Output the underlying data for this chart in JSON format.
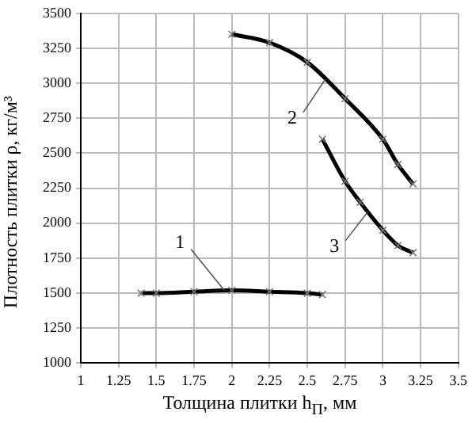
{
  "chart_data": {
    "type": "line",
    "xlabel": "Толщина плитки h$_{П}$, мм",
    "ylabel": "Плотность плитки ρ, кг/м³",
    "xlim": [
      1,
      3.5
    ],
    "xticks": [
      1,
      1.25,
      1.5,
      1.75,
      2,
      2.25,
      2.5,
      2.75,
      3,
      3.25,
      3.5
    ],
    "ylim": [
      1000,
      3500
    ],
    "yticks": [
      1000,
      1250,
      1500,
      1750,
      2000,
      2250,
      2500,
      2750,
      3000,
      3250,
      3500
    ],
    "grid": true,
    "legend": false,
    "marker": "cross",
    "line_style": "solid",
    "series": [
      {
        "color": "#000000",
        "x": [
          1.4,
          1.5,
          1.75,
          2,
          2.25,
          2.5,
          2.6
        ],
        "values": [
          1500,
          1500,
          1510,
          1520,
          1510,
          1500,
          1490
        ]
      },
      {
        "color": "#000000",
        "x": [
          2,
          2.25,
          2.5,
          2.75,
          3,
          3.1,
          3.2
        ],
        "values": [
          3350,
          3290,
          3150,
          2890,
          2600,
          2420,
          2280
        ]
      },
      {
        "color": "#000000",
        "x": [
          2.6,
          2.75,
          2.85,
          3,
          3.1,
          3.2
        ],
        "values": [
          2600,
          2300,
          2150,
          1950,
          1840,
          1790
        ]
      }
    ],
    "annotations": [
      {
        "text": "1",
        "x": 1.95,
        "y": 1520
      },
      {
        "text": "2",
        "x": 2.62,
        "y": 3030
      },
      {
        "text": "3",
        "x": 2.9,
        "y": 2080
      }
    ]
  }
}
